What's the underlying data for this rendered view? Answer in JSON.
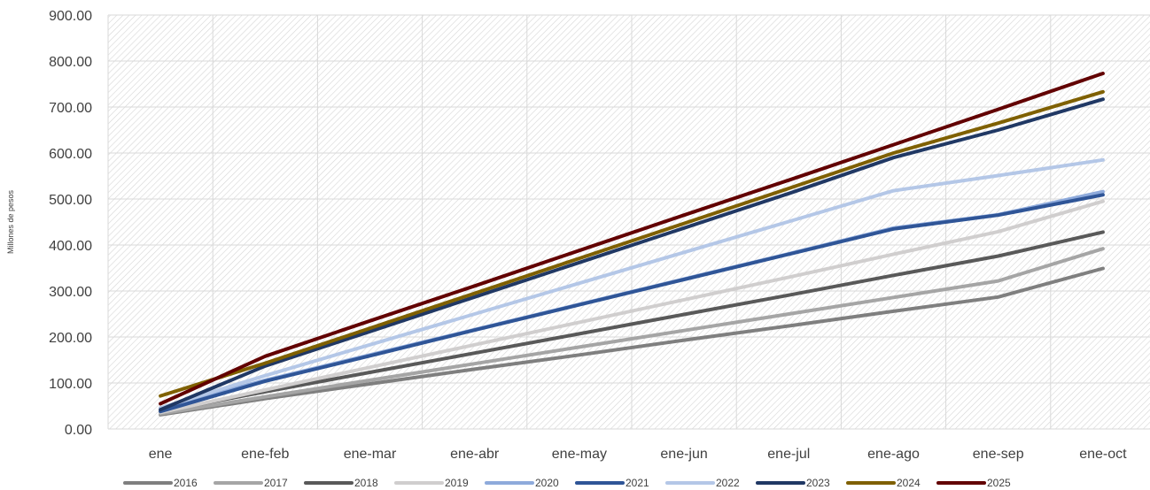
{
  "chart_data": {
    "type": "line",
    "title": "",
    "xlabel": "",
    "ylabel": "Millones de pesos",
    "categories": [
      "ene",
      "ene-feb",
      "ene-mar",
      "ene-abr",
      "ene-may",
      "ene-jun",
      "ene-jul",
      "ene-ago",
      "ene-sep",
      "ene-oct"
    ],
    "y_ticks": [
      "0.00",
      "100.00",
      "200.00",
      "300.00",
      "400.00",
      "500.00",
      "600.00",
      "700.00",
      "800.00",
      "900.00"
    ],
    "ylim": [
      0,
      900
    ],
    "grid": true,
    "legend_position": "bottom",
    "series": [
      {
        "name": "2016",
        "color": "#7f7f7f",
        "values": [
          31,
          66,
          98,
          130,
          161,
          193,
          224,
          256,
          287,
          349
        ]
      },
      {
        "name": "2017",
        "color": "#a5a5a5",
        "values": [
          33,
          70,
          106,
          142,
          178,
          214,
          250,
          286,
          322,
          392
        ]
      },
      {
        "name": "2018",
        "color": "#595959",
        "values": [
          38,
          81,
          123,
          165,
          207,
          249,
          291,
          334,
          376,
          428
        ]
      },
      {
        "name": "2019",
        "color": "#d0cece",
        "values": [
          36,
          85,
          134,
          183,
          232,
          281,
          330,
          380,
          429,
          495
        ]
      },
      {
        "name": "2020",
        "color": "#8eaadb",
        "values": [
          45,
          106,
          161,
          216,
          271,
          326,
          381,
          437,
          466,
          516
        ]
      },
      {
        "name": "2021",
        "color": "#2f5597",
        "values": [
          38,
          104,
          159,
          215,
          270,
          325,
          380,
          435,
          465,
          509
        ]
      },
      {
        "name": "2022",
        "color": "#b4c7e7",
        "values": [
          46,
          116,
          183,
          250,
          317,
          384,
          451,
          518,
          551,
          585
        ]
      },
      {
        "name": "2023",
        "color": "#203864",
        "values": [
          42,
          137,
          212,
          287,
          362,
          437,
          512,
          590,
          650,
          717
        ]
      },
      {
        "name": "2024",
        "color": "#7f6000",
        "values": [
          72,
          143,
          219,
          295,
          371,
          447,
          523,
          600,
          665,
          733
        ]
      },
      {
        "name": "2025",
        "color": "#620000",
        "values": [
          55,
          158,
          235,
          311,
          388,
          465,
          541,
          618,
          695,
          773
        ]
      }
    ]
  }
}
